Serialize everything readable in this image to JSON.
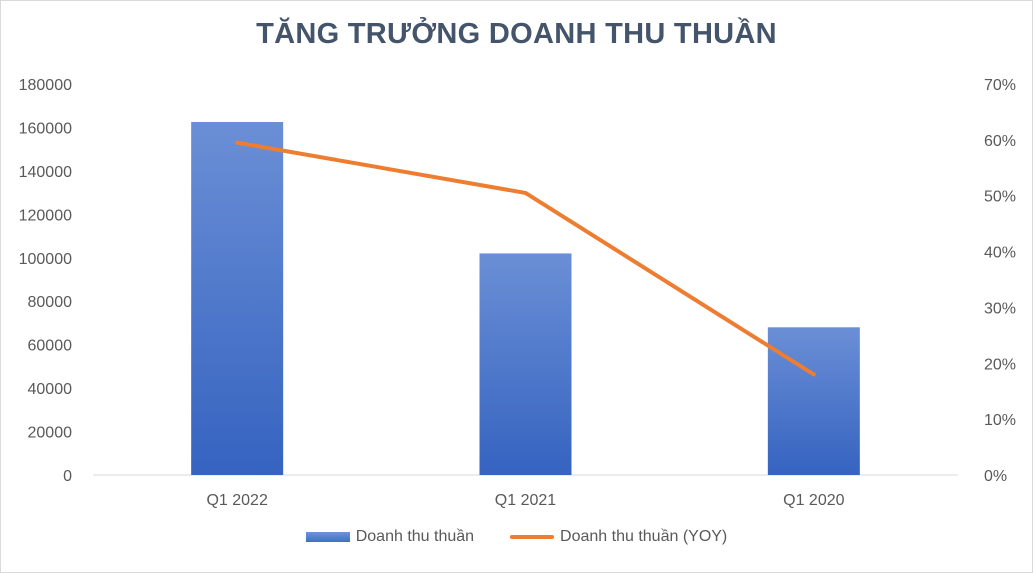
{
  "chart_data": {
    "type": "bar",
    "title": "TĂNG TRƯỞNG DOANH THU THUẦN",
    "categories": [
      "Q1 2022",
      "Q1 2021",
      "Q1 2020"
    ],
    "series": [
      {
        "name": "Doanh thu thuần",
        "type": "bar",
        "axis": "left",
        "values": [
          162500,
          102000,
          68000
        ],
        "color": "#4472c4"
      },
      {
        "name": "Doanh thu thuần (YOY)",
        "type": "line",
        "axis": "right",
        "values": [
          0.595,
          0.505,
          0.18
        ],
        "color": "#ed7d31"
      }
    ],
    "y_left": {
      "min": 0,
      "max": 180000,
      "ticks": [
        "0",
        "20000",
        "40000",
        "60000",
        "80000",
        "100000",
        "120000",
        "140000",
        "160000",
        "180000"
      ]
    },
    "y_right": {
      "min": 0,
      "max": 0.7,
      "ticks": [
        "0%",
        "10%",
        "20%",
        "30%",
        "40%",
        "50%",
        "60%",
        "70%"
      ]
    },
    "grid": false,
    "legend_position": "bottom"
  }
}
